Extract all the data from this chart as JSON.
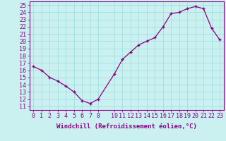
{
  "x": [
    0,
    1,
    2,
    3,
    4,
    5,
    6,
    7,
    8,
    10,
    11,
    12,
    13,
    14,
    15,
    16,
    17,
    18,
    19,
    20,
    21,
    22,
    23
  ],
  "y": [
    16.5,
    16.0,
    15.0,
    14.5,
    13.8,
    13.0,
    11.8,
    11.4,
    12.0,
    15.5,
    17.5,
    18.5,
    19.5,
    20.0,
    20.5,
    22.0,
    23.8,
    24.0,
    24.5,
    24.8,
    24.5,
    21.8,
    20.2
  ],
  "xticks": [
    0,
    1,
    2,
    3,
    4,
    5,
    6,
    7,
    8,
    10,
    11,
    12,
    13,
    14,
    15,
    16,
    17,
    18,
    19,
    20,
    21,
    22,
    23
  ],
  "xtick_labels": [
    "0",
    "1",
    "2",
    "3",
    "4",
    "5",
    "6",
    "7",
    "8",
    "10",
    "11",
    "12",
    "13",
    "14",
    "15",
    "16",
    "17",
    "18",
    "19",
    "20",
    "21",
    "22",
    "23"
  ],
  "yticks": [
    11,
    12,
    13,
    14,
    15,
    16,
    17,
    18,
    19,
    20,
    21,
    22,
    23,
    24,
    25
  ],
  "ylim": [
    10.5,
    25.5
  ],
  "xlim": [
    -0.5,
    23.5
  ],
  "xlabel": "Windchill (Refroidissement éolien,°C)",
  "line_color": "#880088",
  "marker": "+",
  "bg_color": "#caf0f0",
  "grid_color": "#99dddd",
  "label_color": "#880088",
  "xlabel_fontsize": 6.5,
  "tick_fontsize": 6.0,
  "markersize": 3.5,
  "linewidth": 0.9
}
